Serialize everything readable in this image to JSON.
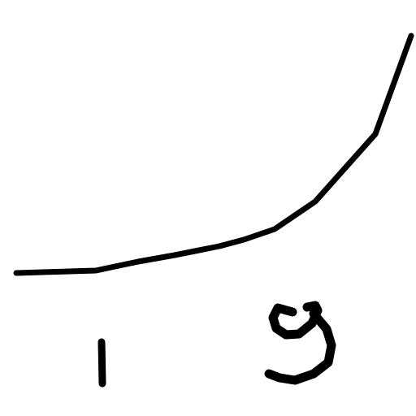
{
  "canvas": {
    "background": "#ffffff",
    "ink_color": "#000000"
  },
  "drawing": {
    "curve": {
      "shape": "exponential-like rising curve"
    },
    "marks": [
      {
        "glyph": "1"
      },
      {
        "glyph": "9"
      }
    ]
  }
}
